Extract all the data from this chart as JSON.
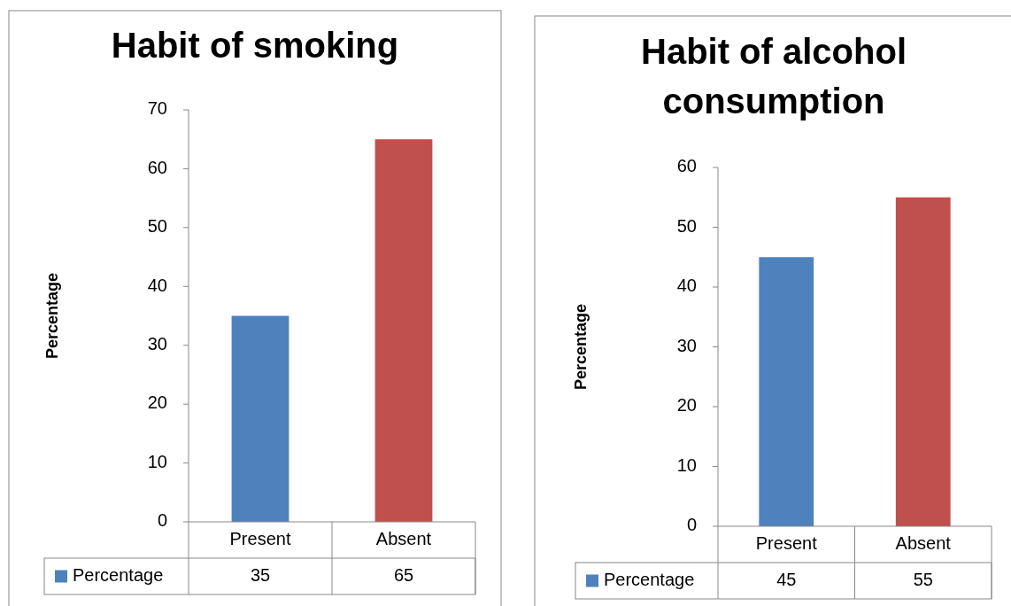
{
  "chart_data": [
    {
      "type": "bar",
      "title": "Habit of smoking",
      "ylabel": "Percentage",
      "categories": [
        "Present",
        "Absent"
      ],
      "series": [
        {
          "name": "Percentage",
          "color": "#4f81bd",
          "colors": [
            "#4f81bd",
            "#c0504d"
          ],
          "values": [
            35,
            65
          ]
        }
      ],
      "ylim": [
        0,
        70
      ],
      "yticks": [
        0,
        10,
        20,
        30,
        40,
        50,
        60,
        70
      ],
      "grid": false,
      "legend": "bottom",
      "data_labels": true
    },
    {
      "type": "bar",
      "title": "Habit of alcohol consumption",
      "ylabel": "Percentage",
      "categories": [
        "Present",
        "Absent"
      ],
      "series": [
        {
          "name": "Percentage",
          "color": "#4f81bd",
          "colors": [
            "#4f81bd",
            "#c0504d"
          ],
          "values": [
            45,
            55
          ]
        }
      ],
      "ylim": [
        0,
        60
      ],
      "yticks": [
        0,
        10,
        20,
        30,
        40,
        50,
        60
      ],
      "grid": false,
      "legend": "bottom",
      "data_labels": true
    }
  ]
}
